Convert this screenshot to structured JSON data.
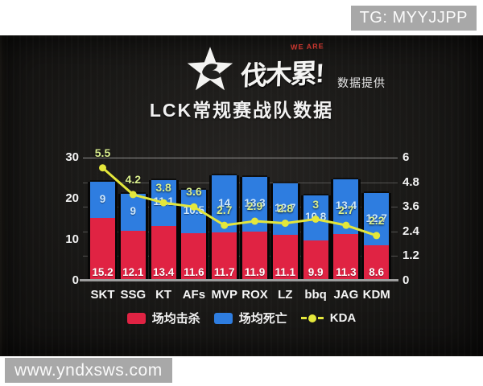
{
  "top_bar": {
    "telegram_badge": "TG: MYYJJPP"
  },
  "header": {
    "brand_name": "伐木累!",
    "brand_tagline": "WE ARE",
    "provider_label": "数据提供"
  },
  "title": "LCK常规赛战队数据",
  "chart_data": {
    "type": "bar",
    "subtype": "stacked-bars-with-line-overlay-dual-axis",
    "title": "LCK常规赛战队数据",
    "categories": [
      "SKT",
      "SSG",
      "KT",
      "AFs",
      "MVP",
      "ROX",
      "LZ",
      "bbq",
      "JAG",
      "KDM"
    ],
    "series": [
      {
        "name": "场均击杀",
        "type": "bar",
        "axis": "left",
        "color": "#e02343",
        "values": [
          15.2,
          12.1,
          13.4,
          11.6,
          11.7,
          11.9,
          11.1,
          9.9,
          11.3,
          8.6
        ]
      },
      {
        "name": "场均死亡",
        "type": "bar",
        "axis": "left",
        "color": "#2e7de0",
        "values": [
          9,
          9,
          11.1,
          10.5,
          14,
          13.3,
          12.7,
          10.8,
          13.4,
          12.7
        ]
      },
      {
        "name": "KDA",
        "type": "line",
        "axis": "right",
        "color": "#e4e73b",
        "values": [
          5.5,
          4.2,
          3.8,
          3.6,
          2.7,
          2.9,
          2.8,
          3,
          2.7,
          2.2
        ]
      }
    ],
    "left_axis": {
      "min": 0,
      "max": 30,
      "ticks": [
        30,
        20,
        10,
        0
      ]
    },
    "right_axis": {
      "min": 0,
      "max": 6,
      "ticks": [
        6,
        4.8,
        3.6,
        2.4,
        1.2,
        0
      ]
    },
    "grid": true,
    "legend_position": "bottom",
    "legend": [
      {
        "label": "场均击杀",
        "swatch": "#e02343",
        "marker": "square"
      },
      {
        "label": "场均死亡",
        "swatch": "#2e7de0",
        "marker": "square"
      },
      {
        "label": "KDA",
        "swatch": "#e4e73b",
        "marker": "dash-dot-dash"
      }
    ]
  },
  "bottom_bar": {
    "watermark": "www.yndxsws.com"
  },
  "colors": {
    "kills_bar": "#e02343",
    "deaths_bar": "#2e7de0",
    "kda_line": "#e4e73b",
    "kda_label": "#d9ee8d",
    "deaths_label": "#cfe8fd",
    "badge_bg": "#a8a8a8"
  }
}
